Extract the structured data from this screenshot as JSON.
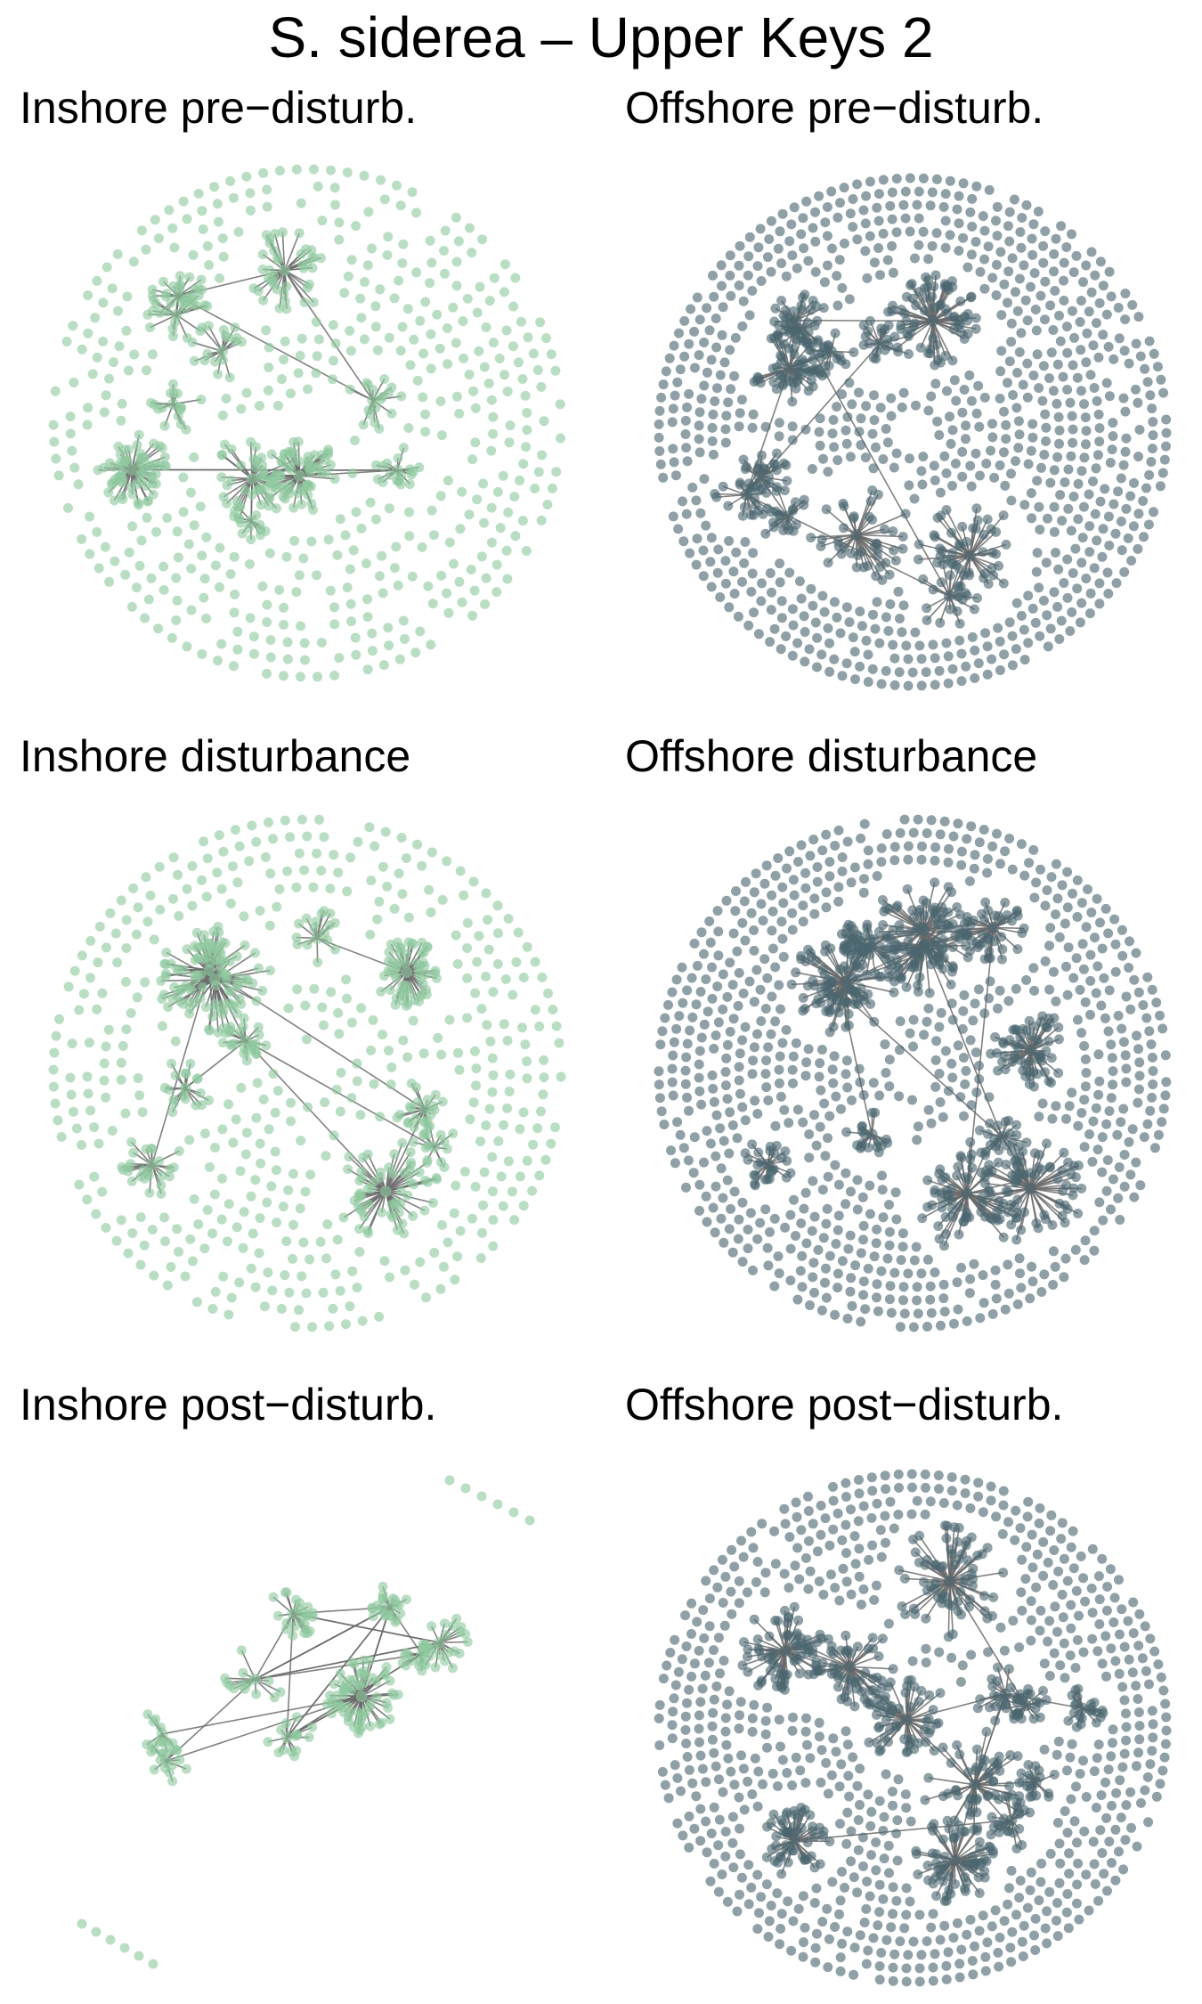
{
  "title": "S. siderea – Upper Keys 2",
  "colors": {
    "inshore_node": "#8fcaa0",
    "offshore_node": "#4a6670",
    "edge": "#6b6b6b"
  },
  "panels": [
    {
      "id": "inshore-pre",
      "title": "Inshore pre−disturb.",
      "group": "inshore",
      "node_color": "#8fcaa0",
      "layout": "circle",
      "hub_count": 11
    },
    {
      "id": "offshore-pre",
      "title": "Offshore pre−disturb.",
      "group": "offshore",
      "node_color": "#4a6670",
      "layout": "circle",
      "hub_count": 12
    },
    {
      "id": "inshore-dist",
      "title": "Inshore disturbance",
      "group": "inshore",
      "node_color": "#8fcaa0",
      "layout": "circle",
      "hub_count": 10
    },
    {
      "id": "offshore-dist",
      "title": "Offshore disturbance",
      "group": "offshore",
      "node_color": "#4a6670",
      "layout": "circle",
      "hub_count": 13
    },
    {
      "id": "inshore-post",
      "title": "Inshore post−disturb.",
      "group": "inshore",
      "node_color": "#8fcaa0",
      "layout": "dense-cluster",
      "hub_count": 9
    },
    {
      "id": "offshore-post",
      "title": "Offshore post−disturb.",
      "group": "offshore",
      "node_color": "#4a6670",
      "layout": "circle",
      "hub_count": 12
    }
  ]
}
